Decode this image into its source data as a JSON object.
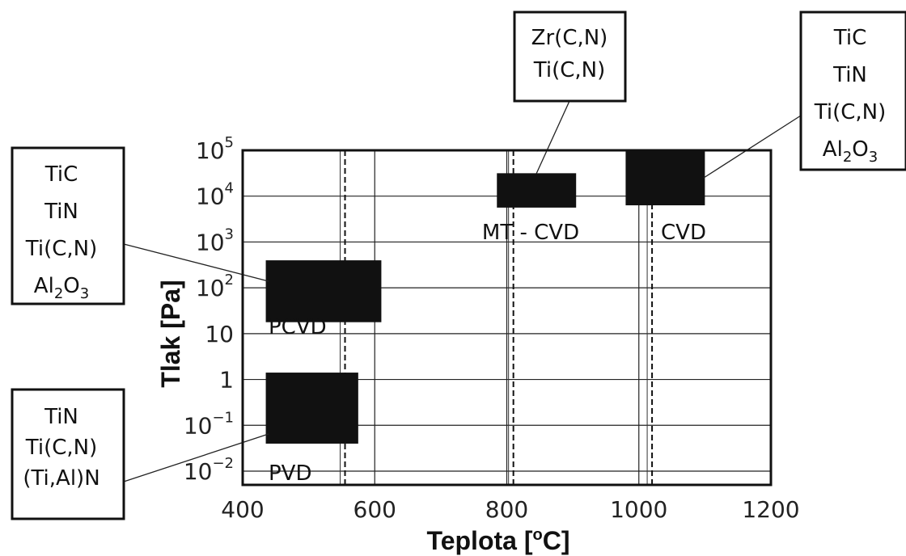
{
  "chart_data": {
    "type": "range-region diagram",
    "xlabel": "Teplota [°C]",
    "xlabel_main": "Teplota [",
    "xlabel_unit": "C]",
    "xlabel_degree": "o",
    "ylabel": "Tlak [Pa]",
    "x_axis": {
      "scale": "linear",
      "range": [
        400,
        1200
      ],
      "ticks": [
        400,
        600,
        800,
        1000,
        1200
      ]
    },
    "y_axis": {
      "scale": "log",
      "range_exponent": [
        -2.3,
        5
      ],
      "ticks": [
        {
          "exp": 5,
          "base": "10",
          "sup": "5"
        },
        {
          "exp": 4,
          "base": "10",
          "sup": "4"
        },
        {
          "exp": 3,
          "base": "10",
          "sup": "3"
        },
        {
          "exp": 2,
          "base": "10",
          "sup": "2"
        },
        {
          "exp": 1,
          "base": "10",
          "sup": ""
        },
        {
          "exp": 0,
          "base": "1",
          "sup": ""
        },
        {
          "exp": -1,
          "base": "10",
          "sup": "−1"
        },
        {
          "exp": -2,
          "base": "10",
          "sup": "−2"
        }
      ]
    },
    "grid": true,
    "dashed_verticals_C": [
      555,
      810,
      1020
    ],
    "regions": [
      {
        "name": "PVD",
        "x": [
          435,
          575
        ],
        "y_exp": [
          -1.4,
          0.15
        ]
      },
      {
        "name": "PCVD",
        "x": [
          435,
          610
        ],
        "y_exp": [
          1.25,
          2.6
        ]
      },
      {
        "name": "MT - CVD",
        "x": [
          785,
          905
        ],
        "y_exp": [
          3.75,
          4.5
        ]
      },
      {
        "name": "CVD",
        "x": [
          980,
          1100
        ],
        "y_exp": [
          3.8,
          5
        ]
      }
    ],
    "callouts": [
      {
        "for": "PVD",
        "lines": [
          {
            "t": "TiN"
          },
          {
            "t": "Ti(C,N)"
          },
          {
            "t": "(Ti,Al)N"
          }
        ]
      },
      {
        "for": "PCVD",
        "lines": [
          {
            "t": "TiC"
          },
          {
            "t": "TiN"
          },
          {
            "t": "Ti(C,N)"
          },
          {
            "t": "Al",
            "sub": "2",
            "t2": "O",
            "sub2": "3"
          }
        ]
      },
      {
        "for": "MT - CVD",
        "lines": [
          {
            "t": "Zr(C,N)"
          },
          {
            "t": "Ti(C,N)"
          }
        ]
      },
      {
        "for": "CVD",
        "lines": [
          {
            "t": "TiC"
          },
          {
            "t": "TiN"
          },
          {
            "t": "Ti(C,N)"
          },
          {
            "t": "Al",
            "sub": "2",
            "t2": "O",
            "sub2": "3"
          }
        ]
      }
    ]
  }
}
